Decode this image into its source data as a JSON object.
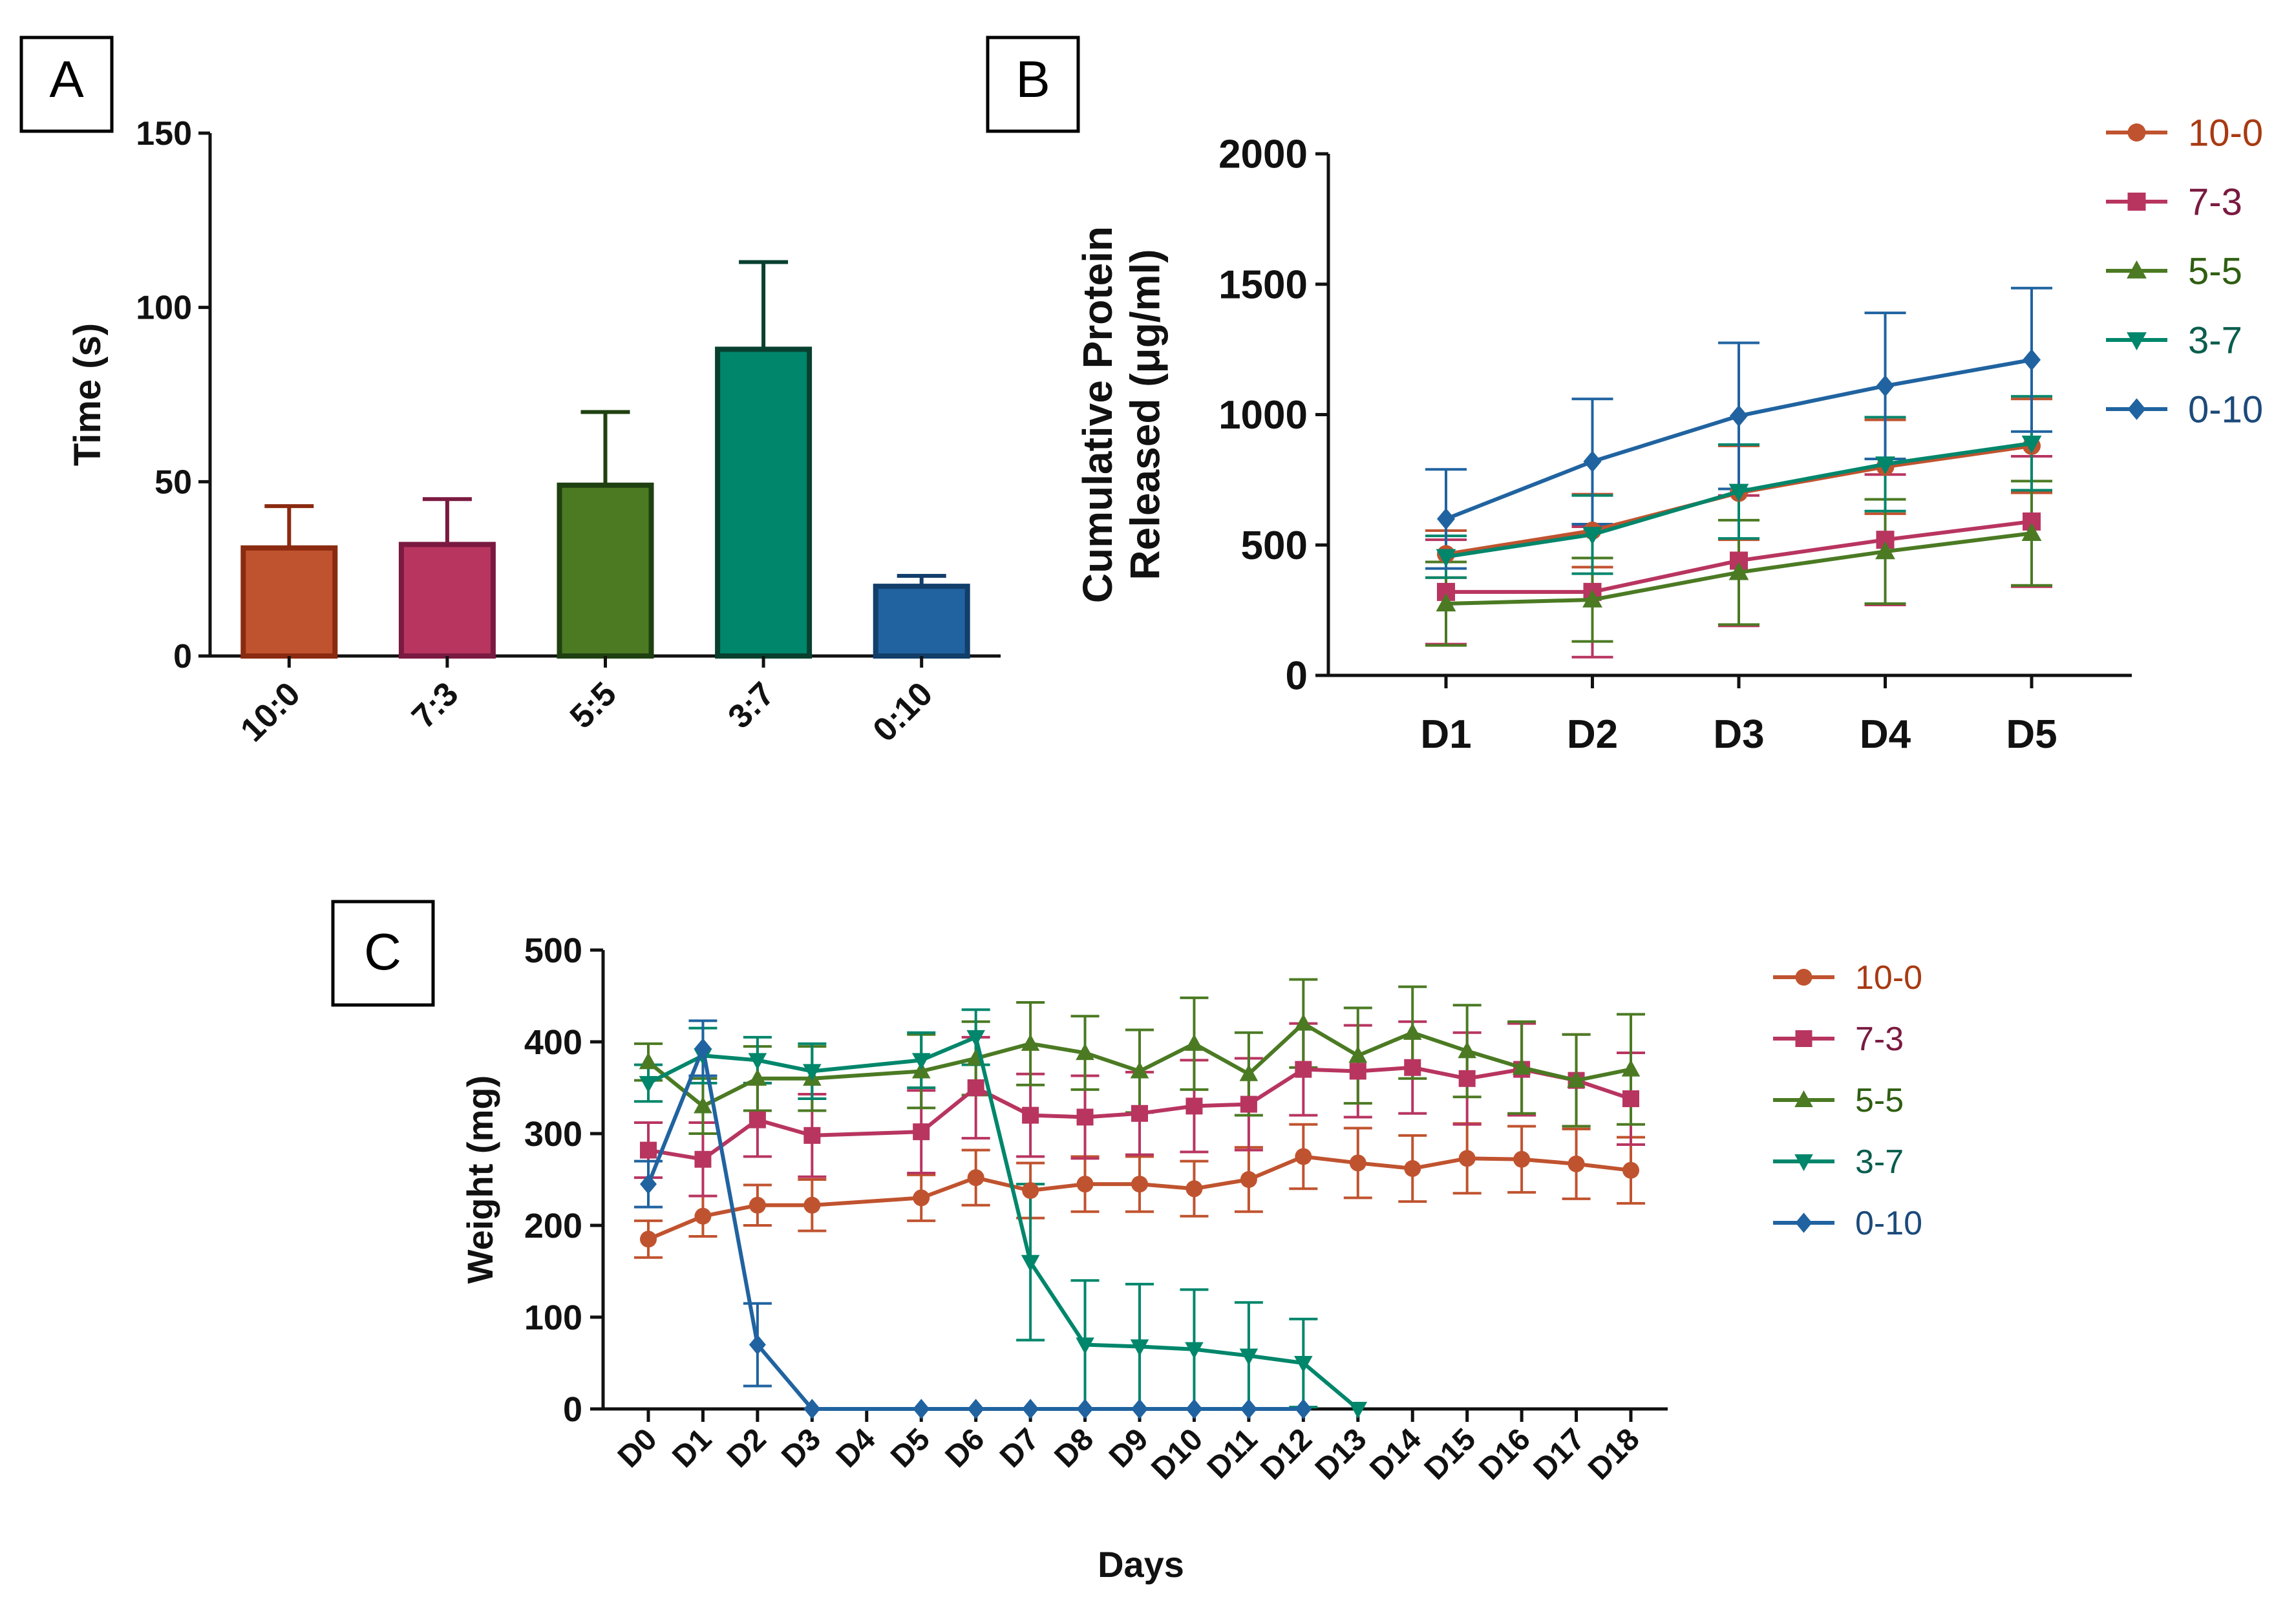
{
  "colors": {
    "s100": "#C0532F",
    "s73": "#B83560",
    "s55": "#4B7A23",
    "s37": "#00866B",
    "s010": "#2063A0",
    "s100_text": "#A83A12",
    "s73_text": "#7A1A40",
    "s55_text": "#2F5E12",
    "s37_text": "#0A5E4E",
    "s010_text": "#1C4A7A",
    "axis": "#111111"
  },
  "chart_data": [
    {
      "panel": "A",
      "type": "bar",
      "title": "",
      "xlabel": "",
      "ylabel": "Time (s)",
      "ylim": [
        0,
        150
      ],
      "yticks": [
        0,
        50,
        100,
        150
      ],
      "categories": [
        "10:0",
        "7:3",
        "5:5",
        "3:7",
        "0:10"
      ],
      "values": [
        31,
        32,
        49,
        88,
        20
      ],
      "errors": [
        12,
        13,
        21,
        25,
        3
      ],
      "bar_colors": [
        "#C0532F",
        "#B83560",
        "#4B7A23",
        "#00866B",
        "#2063A0"
      ],
      "edge_colors": [
        "#8A2A10",
        "#7A1A40",
        "#1F4010",
        "#08402F",
        "#123E6A"
      ]
    },
    {
      "panel": "B",
      "type": "line",
      "title": "",
      "xlabel": "",
      "ylabel": [
        "Cumulative Protein",
        "Released (μg/ml)"
      ],
      "ylim": [
        0,
        2000
      ],
      "yticks": [
        0,
        500,
        1000,
        1500,
        2000
      ],
      "categories": [
        "D1",
        "D2",
        "D3",
        "D4",
        "D5"
      ],
      "legend_position": "top-right",
      "series": [
        {
          "name": "10-0",
          "marker": "circle",
          "color": "#C0532F",
          "text_color": "#A83A12",
          "values": [
            465,
            555,
            700,
            800,
            880
          ],
          "errors": [
            90,
            140,
            180,
            180,
            180
          ]
        },
        {
          "name": "7-3",
          "marker": "square",
          "color": "#B83560",
          "text_color": "#7A1A40",
          "values": [
            320,
            320,
            440,
            520,
            590
          ],
          "errors": [
            200,
            250,
            250,
            250,
            250
          ]
        },
        {
          "name": "5-5",
          "marker": "triangle-up",
          "color": "#4B7A23",
          "text_color": "#2F5E12",
          "values": [
            275,
            290,
            395,
            475,
            545
          ],
          "errors": [
            160,
            160,
            200,
            200,
            200
          ]
        },
        {
          "name": "3-7",
          "marker": "triangle-down",
          "color": "#00866B",
          "text_color": "#0A5E4E",
          "values": [
            455,
            540,
            705,
            810,
            890
          ],
          "errors": [
            80,
            150,
            180,
            180,
            180
          ]
        },
        {
          "name": "0-10",
          "marker": "diamond",
          "color": "#2063A0",
          "text_color": "#1C4A7A",
          "values": [
            600,
            820,
            995,
            1110,
            1210
          ],
          "errors": [
            190,
            240,
            280,
            280,
            275
          ]
        }
      ]
    },
    {
      "panel": "C",
      "type": "line",
      "title": "",
      "xlabel": "Days",
      "ylabel": "Weight (mg)",
      "ylim": [
        0,
        500
      ],
      "yticks": [
        0,
        100,
        200,
        300,
        400,
        500
      ],
      "categories": [
        "D0",
        "D1",
        "D2",
        "D3",
        "D4",
        "D5",
        "D6",
        "D7",
        "D8",
        "D9",
        "D10",
        "D11",
        "D12",
        "D13",
        "D14",
        "D15",
        "D16",
        "D17",
        "D18"
      ],
      "legend_position": "right",
      "series": [
        {
          "name": "10-0",
          "marker": "circle",
          "color": "#C0532F",
          "text_color": "#A83A12",
          "values": [
            185,
            210,
            222,
            222,
            null,
            230,
            252,
            238,
            245,
            245,
            240,
            250,
            275,
            268,
            262,
            273,
            272,
            267,
            260
          ],
          "errors": [
            20,
            22,
            22,
            28,
            null,
            25,
            30,
            30,
            30,
            30,
            30,
            35,
            35,
            38,
            36,
            38,
            36,
            38,
            36
          ]
        },
        {
          "name": "7-3",
          "marker": "square",
          "color": "#B83560",
          "text_color": "#7A1A40",
          "values": [
            282,
            272,
            315,
            298,
            null,
            302,
            350,
            320,
            318,
            322,
            330,
            332,
            370,
            368,
            372,
            360,
            370,
            358,
            338
          ],
          "errors": [
            30,
            40,
            40,
            45,
            null,
            45,
            55,
            45,
            45,
            45,
            50,
            50,
            50,
            50,
            50,
            50,
            50,
            50,
            50
          ]
        },
        {
          "name": "5-5",
          "marker": "triangle-up",
          "color": "#4B7A23",
          "text_color": "#2F5E12",
          "values": [
            378,
            330,
            360,
            360,
            null,
            368,
            382,
            398,
            388,
            368,
            398,
            365,
            420,
            385,
            410,
            390,
            372,
            358,
            370
          ],
          "errors": [
            20,
            30,
            35,
            35,
            null,
            40,
            40,
            45,
            40,
            45,
            50,
            45,
            48,
            52,
            50,
            50,
            50,
            50,
            60
          ]
        },
        {
          "name": "3-7",
          "marker": "triangle-down",
          "color": "#00866B",
          "text_color": "#0A5E4E",
          "values": [
            355,
            385,
            380,
            368,
            null,
            380,
            405,
            160,
            70,
            68,
            65,
            58,
            50,
            0,
            null,
            null,
            null,
            null,
            null
          ],
          "errors": [
            20,
            30,
            25,
            30,
            null,
            30,
            30,
            85,
            70,
            68,
            65,
            58,
            48,
            0,
            null,
            null,
            null,
            null,
            null
          ]
        },
        {
          "name": "0-10",
          "marker": "diamond",
          "color": "#2063A0",
          "text_color": "#1C4A7A",
          "values": [
            245,
            393,
            70,
            0,
            null,
            0,
            0,
            0,
            0,
            0,
            0,
            0,
            0,
            null,
            null,
            null,
            null,
            null,
            null
          ],
          "errors": [
            25,
            30,
            45,
            0,
            null,
            0,
            0,
            0,
            0,
            0,
            0,
            0,
            0,
            null,
            null,
            null,
            null,
            null,
            null
          ]
        }
      ]
    }
  ],
  "panel_labels": [
    "A",
    "B",
    "C"
  ]
}
